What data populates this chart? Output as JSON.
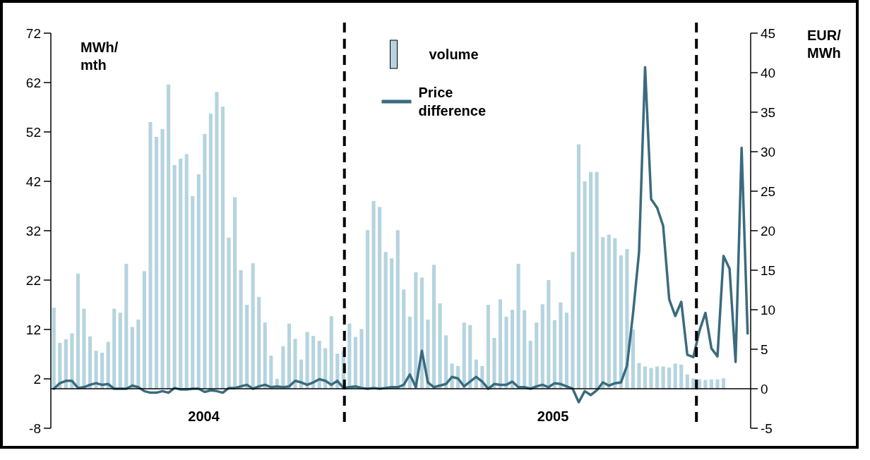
{
  "chart_data": {
    "type": "bar",
    "ylabel": "MWh/mth",
    "y2label": "EUR/MWh",
    "categories": [
      null,
      null,
      null,
      null,
      null,
      null,
      null,
      null,
      null,
      null,
      null,
      null,
      null,
      null,
      null,
      null,
      null,
      null,
      null,
      null,
      null,
      null,
      null,
      null,
      null,
      null,
      null,
      null,
      null,
      null,
      null,
      null,
      null,
      null,
      null,
      null,
      null,
      null,
      null,
      null,
      null,
      null,
      null,
      null,
      null,
      null,
      null,
      null,
      null,
      null,
      null,
      null,
      null,
      null,
      null,
      null,
      null,
      null,
      null,
      null,
      null,
      null,
      null,
      null,
      null,
      null,
      null,
      null,
      null,
      null,
      null,
      null,
      null,
      null,
      null,
      null,
      null,
      null,
      null,
      null,
      null,
      null,
      null,
      null,
      null,
      null,
      null,
      null,
      null,
      null,
      null,
      null,
      null,
      null,
      null,
      null,
      null,
      null,
      null,
      null,
      null,
      null,
      null,
      null,
      null,
      null,
      null,
      null,
      null,
      null,
      null,
      null,
      null,
      null,
      null,
      null
    ],
    "annotations": [
      "2004",
      "2005"
    ],
    "ylim": [
      -8,
      72
    ],
    "yticks": [
      72,
      62,
      52,
      42,
      32,
      22,
      12,
      2,
      -8
    ],
    "y2lim": [
      -5,
      45
    ],
    "y2ticks": [
      45,
      40,
      35,
      30,
      25,
      20,
      15,
      10,
      5,
      0,
      -5
    ],
    "series": [
      {
        "name": "volume",
        "color": "#b5d4df",
        "values": [
          16.4,
          9.3,
          10.0,
          11.2,
          23.3,
          16.2,
          10.6,
          7.7,
          7.3,
          9.5,
          16.2,
          15.4,
          25.3,
          12.5,
          14.0,
          23.8,
          54.0,
          51.0,
          52.6,
          61.6,
          45.3,
          46.6,
          47.5,
          39.0,
          43.4,
          51.6,
          55.7,
          60.1,
          57.1,
          30.6,
          38.8,
          24.0,
          17.0,
          25.4,
          18.6,
          13.4,
          6.7,
          2.0,
          8.6,
          13.2,
          10.1,
          5.9,
          11.5,
          10.7,
          9.7,
          8.2,
          14.7,
          7.1,
          7.7,
          13.2,
          10.5,
          12.1,
          32.1,
          38.0,
          36.8,
          27.7,
          26.4,
          32.1,
          20.1,
          14.6,
          23.6,
          22.5,
          14.0,
          25.1,
          17.3,
          10.8,
          5.1,
          4.6,
          13.4,
          12.9,
          5.9,
          4.6,
          17.0,
          10.3,
          18.1,
          14.6,
          16.0,
          25.3,
          15.9,
          9.7,
          13.4,
          17.1,
          22.0,
          13.9,
          17.5,
          15.4,
          27.7,
          49.5,
          42.0,
          43.9,
          43.9,
          30.7,
          31.2,
          30.5,
          27.0,
          28.3,
          12.0,
          5.2,
          4.5,
          4.2,
          4.5,
          4.5,
          4.3,
          5.1,
          4.9,
          2.9,
          2.1,
          1.9,
          1.8,
          1.9,
          1.9,
          2.1,
          null,
          null,
          null,
          null
        ]
      },
      {
        "name": "Price difference",
        "type": "line",
        "axis": "y2",
        "color": "#3a6b7e",
        "values": [
          0,
          0.7,
          1,
          1,
          0.1,
          0.2,
          0.5,
          0.7,
          0.5,
          0.6,
          0,
          0,
          0,
          0.4,
          0.2,
          -0.3,
          -0.5,
          -0.5,
          -0.3,
          -0.5,
          0.1,
          -0.1,
          -0.1,
          0,
          0,
          -0.4,
          -0.2,
          -0.3,
          -0.5,
          0.1,
          0.1,
          0.3,
          0.5,
          0,
          0.3,
          0.5,
          0.2,
          0.3,
          0.2,
          0.3,
          1,
          0.8,
          0.5,
          0.8,
          1.2,
          1,
          0.5,
          1,
          0.1,
          0.2,
          0.3,
          0.1,
          0,
          0.1,
          0,
          0.1,
          0.2,
          0.2,
          0.5,
          1.8,
          0.2,
          4.8,
          0.8,
          0.2,
          0.4,
          0.6,
          1.5,
          1.3,
          0.3,
          0.9,
          1.5,
          0.9,
          0,
          0.6,
          0.5,
          0.5,
          0.9,
          0.2,
          0.2,
          0,
          0.3,
          0.5,
          0.2,
          0.7,
          0.6,
          0.3,
          0,
          -1.7,
          -0.3,
          -0.8,
          -0.2,
          0.8,
          0.4,
          0.7,
          0.8,
          2.9,
          9.5,
          17.3,
          40.7,
          24.0,
          22.9,
          20.6,
          11.3,
          9.2,
          11.0,
          4.3,
          4,
          7.3,
          9.6,
          5.1,
          4.1,
          16.8,
          15.2,
          3.4,
          30.5,
          7.0
        ]
      }
    ],
    "legend": "top",
    "grid": false,
    "marker": "none"
  }
}
